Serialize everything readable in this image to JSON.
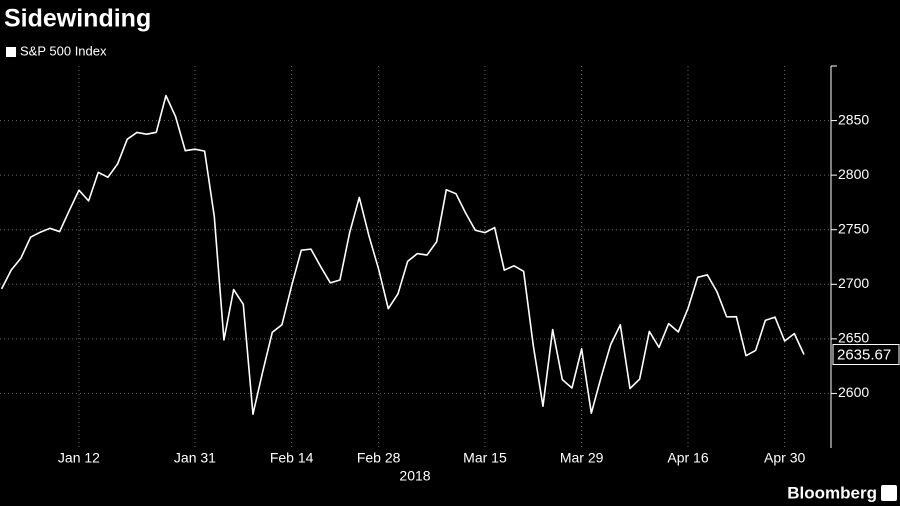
{
  "chart_data": {
    "type": "line",
    "title": "Sidewinding",
    "x_label": "2018",
    "source": "Bloomberg",
    "categories": [
      null,
      null,
      null,
      null,
      null,
      null,
      null,
      null,
      "Jan 12",
      null,
      null,
      null,
      null,
      null,
      null,
      null,
      null,
      null,
      null,
      null,
      "Jan 31",
      null,
      null,
      null,
      null,
      null,
      null,
      null,
      null,
      null,
      "Feb 14",
      null,
      null,
      null,
      null,
      null,
      null,
      null,
      null,
      "Feb 28",
      null,
      null,
      null,
      null,
      null,
      null,
      null,
      null,
      null,
      null,
      "Mar 15",
      null,
      null,
      null,
      null,
      null,
      null,
      null,
      null,
      null,
      "Mar 29",
      null,
      null,
      null,
      null,
      null,
      null,
      null,
      null,
      null,
      null,
      "Apr 16",
      null,
      null,
      null,
      null,
      null,
      null,
      null,
      null,
      null,
      "Apr 30",
      null,
      null
    ],
    "series": [
      {
        "name": "S&P 500 Index",
        "color": "#ffffff",
        "values": [
          2695.81,
          2713.06,
          2723.99,
          2743.15,
          2747.71,
          2751.29,
          2748.23,
          2767.56,
          2786.24,
          2776.42,
          2802.56,
          2798.03,
          2810.3,
          2832.97,
          2839.13,
          2837.54,
          2839.25,
          2872.87,
          2853.53,
          2822.43,
          2823.81,
          2821.98,
          2762.13,
          2648.94,
          2695.14,
          2681.66,
          2581.0,
          2619.55,
          2656.0,
          2662.94,
          2698.63,
          2731.2,
          2732.22,
          2716.26,
          2701.33,
          2703.96,
          2747.3,
          2779.6,
          2744.28,
          2713.83,
          2677.67,
          2691.25,
          2720.94,
          2728.12,
          2726.8,
          2738.97,
          2786.57,
          2783.02,
          2765.31,
          2749.48,
          2747.33,
          2752.01,
          2712.92,
          2716.94,
          2711.93,
          2643.69,
          2588.26,
          2658.55,
          2612.62,
          2605.0,
          2640.87,
          2581.88,
          2614.45,
          2644.69,
          2662.84,
          2604.47,
          2613.16,
          2656.87,
          2642.19,
          2663.99,
          2656.3,
          2677.84,
          2706.39,
          2708.64,
          2693.13,
          2670.14,
          2670.29,
          2634.56,
          2639.4,
          2666.94,
          2669.91,
          2648.05,
          2654.8,
          2635.67
        ]
      }
    ],
    "ylim": [
      2550,
      2900
    ],
    "yticks": [
      2600,
      2650,
      2700,
      2750,
      2800,
      2850
    ],
    "grid": true
  }
}
